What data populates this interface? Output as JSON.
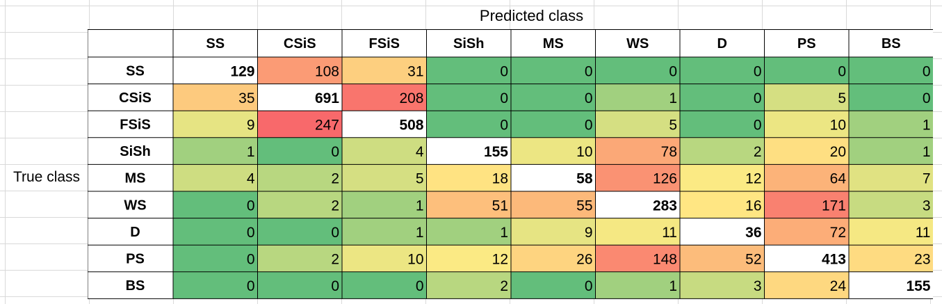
{
  "chart_data": {
    "type": "heatmap",
    "x_title": "Predicted class",
    "y_title": "True class",
    "x_labels": [
      "SS",
      "CSiS",
      "FSiS",
      "SiSh",
      "MS",
      "WS",
      "D",
      "PS",
      "BS"
    ],
    "y_labels": [
      "SS",
      "CSiS",
      "FSiS",
      "SiSh",
      "MS",
      "WS",
      "D",
      "PS",
      "BS"
    ],
    "values": [
      [
        129,
        108,
        31,
        0,
        0,
        0,
        0,
        0,
        0
      ],
      [
        35,
        691,
        208,
        0,
        0,
        1,
        0,
        5,
        0
      ],
      [
        9,
        247,
        508,
        0,
        0,
        5,
        0,
        10,
        1
      ],
      [
        1,
        0,
        4,
        155,
        10,
        78,
        2,
        20,
        1
      ],
      [
        4,
        2,
        5,
        18,
        58,
        126,
        12,
        64,
        7
      ],
      [
        0,
        2,
        1,
        51,
        55,
        283,
        16,
        171,
        3
      ],
      [
        0,
        0,
        1,
        1,
        9,
        11,
        36,
        72,
        11
      ],
      [
        0,
        2,
        10,
        12,
        26,
        148,
        52,
        413,
        23
      ],
      [
        0,
        0,
        0,
        2,
        0,
        1,
        3,
        24,
        155
      ]
    ],
    "diagonal_fill": "#ffffff",
    "colors": {
      "low": "#63be7b",
      "mid": "#ffeb84",
      "high": "#f8696b",
      "border": "#000000"
    }
  }
}
